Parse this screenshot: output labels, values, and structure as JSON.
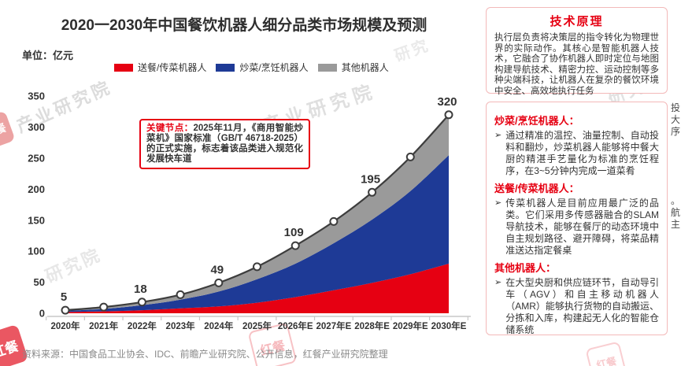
{
  "title": "2020一2030年中国餐饮机器人细分品类市场规模及预测",
  "unit_label": "单位：亿元",
  "legend": [
    {
      "label": "送餐/传菜机器人",
      "color": "#e60012"
    },
    {
      "label": "炒菜/烹饪机器人",
      "color": "#1e3a96"
    },
    {
      "label": "其他机器人",
      "color": "#9a9a9a"
    }
  ],
  "annotation": {
    "label": "关键节点：",
    "text": "2025年11月，《商用智能炒菜机》国家标准（GB/T 46718-2025）的正式实施，标志着该品类进入规范化发展快车道"
  },
  "tech_panel": {
    "title": "技术原理",
    "body": "执行层负责将决策层的指令转化为物理世界的实际动作。其核心是智能机器人技术，它融合了协作机器人即时定位与地图构建导航技术、精密力控、运动控制等多种尖端科技，让机器人在复杂的餐饮环境中安全、高效地执行任务"
  },
  "sections": [
    {
      "title": "炒菜/烹饪机器人：",
      "bullet": "通过精准的温控、油量控制、自动投料和翻炒，炒菜机器人能够将中餐大厨的精湛手艺量化为标准的烹饪程序，在3~5分钟内完成一道菜肴"
    },
    {
      "title": "送餐/传菜机器人：",
      "bullet": "传菜机器人是目前应用最广泛的品类。它们采用多传感器融合的SLAM导航技术，能够在餐厅的动态环境中自主规划路径、避开障碍，将菜品精准送达指定餐桌"
    },
    {
      "title": "其他机器人：",
      "bullet": "在大型央厨和供应链环节，自动导引车（AGV）和自主移动机器人（AMR）能够执行货物的自动搬运、分拣和入库，构建起无人化的智能仓储系统"
    }
  ],
  "bullet_marker": "➢",
  "source": "资料来源：中国食品工业协会、IDC、前瞻产业研究院、公开信息，红餐产业研究院整理",
  "watermark": {
    "logo_text": "红餐",
    "text": "产业研究院",
    "text_short": "研究院",
    "text_mini": "研究",
    "text_tiny": "究院"
  },
  "edge_fragments": {
    "top": [
      "投",
      "大",
      "序"
    ],
    "bottom": [
      "。",
      "航",
      "主"
    ]
  },
  "colors": {
    "red": "#e60012",
    "blue": "#1e3a96",
    "gray": "#9a9a9a",
    "line": "#3d3d3d",
    "axis": "#c8c8c8",
    "panel_border": "#f3b9b9",
    "text_dark": "#333333"
  },
  "chart_data": {
    "type": "area",
    "stacked": true,
    "grid": false,
    "legend_position": "top",
    "ylabel": "亿元",
    "ylim": [
      0,
      350
    ],
    "yticks": [
      0,
      50,
      100,
      150,
      200,
      250,
      300,
      350
    ],
    "categories": [
      "2020年",
      "2021年",
      "2022年",
      "2023年",
      "2024年",
      "2025年",
      "2026年E",
      "2027年E",
      "2028年E",
      "2029年E",
      "2030年E"
    ],
    "series": [
      {
        "name": "送餐/传菜机器人",
        "color": "#e60012",
        "values": [
          2,
          3,
          5,
          8,
          11,
          17,
          26,
          37,
          49,
          63,
          80
        ]
      },
      {
        "name": "炒菜/烹饪机器人",
        "color": "#1e3a96",
        "values": [
          2,
          4,
          8,
          14,
          24,
          38,
          54,
          76,
          102,
          134,
          175
        ]
      },
      {
        "name": "其他机器人",
        "color": "#9a9a9a",
        "values": [
          1,
          3,
          5,
          8,
          14,
          20,
          29,
          35,
          44,
          55,
          65
        ]
      }
    ],
    "totals": [
      5,
      10,
      18,
      30,
      49,
      75,
      109,
      148,
      195,
      252,
      320
    ],
    "total_labels": [
      {
        "index": 0,
        "label": "5"
      },
      {
        "index": 2,
        "label": "18"
      },
      {
        "index": 4,
        "label": "49"
      },
      {
        "index": 6,
        "label": "109"
      },
      {
        "index": 8,
        "label": "195"
      },
      {
        "index": 10,
        "label": "320"
      }
    ]
  }
}
